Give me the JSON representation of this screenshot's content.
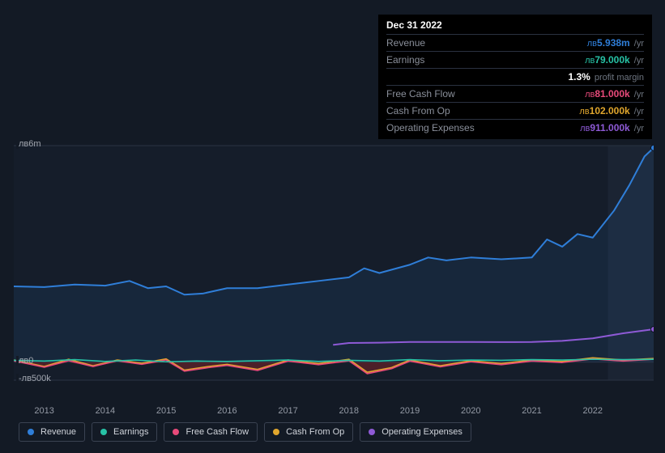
{
  "tooltip": {
    "title": "Dec 31 2022",
    "rows": [
      {
        "label": "Revenue",
        "currency": "лв",
        "value": "5.938m",
        "unit": "/yr",
        "color": "#2f7ed8"
      },
      {
        "label": "Earnings",
        "currency": "лв",
        "value": "79.000k",
        "unit": "/yr",
        "color": "#27c2a6"
      },
      {
        "label": "",
        "currency": "",
        "value": "1.3%",
        "unit": "profit margin",
        "color": "#ffffff"
      },
      {
        "label": "Free Cash Flow",
        "currency": "лв",
        "value": "81.000k",
        "unit": "/yr",
        "color": "#e84a7a"
      },
      {
        "label": "Cash From Op",
        "currency": "лв",
        "value": "102.000k",
        "unit": "/yr",
        "color": "#e0a62d"
      },
      {
        "label": "Operating Expenses",
        "currency": "лв",
        "value": "911.000k",
        "unit": "/yr",
        "color": "#8e5ad6"
      }
    ]
  },
  "chart": {
    "type": "line",
    "background_color": "#131a25",
    "plot_bg": "#151d2a",
    "future_bg": "#1b2433",
    "grid_color": "#2a3342",
    "y_min": -500000,
    "y_max": 6000000,
    "y_labels": [
      {
        "v": 6000000,
        "text": "лв6m"
      },
      {
        "v": 0,
        "text": "лв0"
      },
      {
        "v": -500000,
        "text": "-лв500k"
      }
    ],
    "x_years": [
      2013,
      2014,
      2015,
      2016,
      2017,
      2018,
      2019,
      2020,
      2021,
      2022
    ],
    "x_min": 2012.5,
    "x_max": 2023.0,
    "future_split": 2022.25,
    "series": [
      {
        "name": "Revenue",
        "color": "#2f7ed8",
        "width": 2,
        "points": [
          [
            2012.5,
            2100000
          ],
          [
            2013,
            2080000
          ],
          [
            2013.5,
            2150000
          ],
          [
            2014,
            2120000
          ],
          [
            2014.4,
            2250000
          ],
          [
            2014.7,
            2050000
          ],
          [
            2015,
            2100000
          ],
          [
            2015.3,
            1870000
          ],
          [
            2015.6,
            1900000
          ],
          [
            2016,
            2050000
          ],
          [
            2016.5,
            2050000
          ],
          [
            2017,
            2150000
          ],
          [
            2017.5,
            2250000
          ],
          [
            2018,
            2350000
          ],
          [
            2018.25,
            2600000
          ],
          [
            2018.5,
            2470000
          ],
          [
            2019,
            2700000
          ],
          [
            2019.3,
            2900000
          ],
          [
            2019.6,
            2820000
          ],
          [
            2020,
            2900000
          ],
          [
            2020.5,
            2850000
          ],
          [
            2021,
            2900000
          ],
          [
            2021.25,
            3400000
          ],
          [
            2021.5,
            3200000
          ],
          [
            2021.75,
            3550000
          ],
          [
            2022,
            3450000
          ],
          [
            2022.35,
            4200000
          ],
          [
            2022.6,
            4900000
          ],
          [
            2022.85,
            5700000
          ],
          [
            2023,
            5938000
          ]
        ]
      },
      {
        "name": "Operating Expenses",
        "color": "#8e5ad6",
        "width": 2,
        "points": [
          [
            2017.75,
            480000
          ],
          [
            2018,
            530000
          ],
          [
            2018.5,
            540000
          ],
          [
            2019,
            560000
          ],
          [
            2019.5,
            560000
          ],
          [
            2020,
            560000
          ],
          [
            2020.5,
            555000
          ],
          [
            2021,
            560000
          ],
          [
            2021.5,
            590000
          ],
          [
            2022,
            660000
          ],
          [
            2022.5,
            800000
          ],
          [
            2023,
            911000
          ]
        ]
      },
      {
        "name": "Cash From Op",
        "color": "#e0a62d",
        "width": 1.6,
        "points": [
          [
            2012.5,
            60000
          ],
          [
            2013,
            -120000
          ],
          [
            2013.4,
            80000
          ],
          [
            2013.8,
            -100000
          ],
          [
            2014.2,
            60000
          ],
          [
            2014.6,
            -30000
          ],
          [
            2015,
            90000
          ],
          [
            2015.3,
            -220000
          ],
          [
            2015.7,
            -120000
          ],
          [
            2016,
            -60000
          ],
          [
            2016.5,
            -200000
          ],
          [
            2017,
            60000
          ],
          [
            2017.5,
            -40000
          ],
          [
            2018,
            80000
          ],
          [
            2018.3,
            -280000
          ],
          [
            2018.7,
            -150000
          ],
          [
            2019,
            60000
          ],
          [
            2019.5,
            -100000
          ],
          [
            2020,
            40000
          ],
          [
            2020.5,
            -40000
          ],
          [
            2021,
            60000
          ],
          [
            2021.5,
            20000
          ],
          [
            2022,
            120000
          ],
          [
            2022.5,
            60000
          ],
          [
            2023,
            102000
          ]
        ]
      },
      {
        "name": "Free Cash Flow",
        "color": "#e84a7a",
        "width": 1.6,
        "points": [
          [
            2012.5,
            40000
          ],
          [
            2013,
            -140000
          ],
          [
            2013.4,
            40000
          ],
          [
            2013.8,
            -120000
          ],
          [
            2014.2,
            40000
          ],
          [
            2014.6,
            -60000
          ],
          [
            2015,
            60000
          ],
          [
            2015.3,
            -250000
          ],
          [
            2015.7,
            -150000
          ],
          [
            2016,
            -90000
          ],
          [
            2016.5,
            -230000
          ],
          [
            2017,
            30000
          ],
          [
            2017.5,
            -70000
          ],
          [
            2018,
            40000
          ],
          [
            2018.3,
            -320000
          ],
          [
            2018.7,
            -180000
          ],
          [
            2019,
            30000
          ],
          [
            2019.5,
            -130000
          ],
          [
            2020,
            10000
          ],
          [
            2020.5,
            -70000
          ],
          [
            2021,
            30000
          ],
          [
            2021.5,
            -10000
          ],
          [
            2022,
            90000
          ],
          [
            2022.5,
            30000
          ],
          [
            2023,
            81000
          ]
        ]
      },
      {
        "name": "Earnings",
        "color": "#27c2a6",
        "width": 1.6,
        "points": [
          [
            2012.5,
            50000
          ],
          [
            2013,
            30000
          ],
          [
            2013.5,
            70000
          ],
          [
            2014,
            20000
          ],
          [
            2014.5,
            60000
          ],
          [
            2015,
            10000
          ],
          [
            2015.5,
            30000
          ],
          [
            2016,
            20000
          ],
          [
            2016.5,
            40000
          ],
          [
            2017,
            60000
          ],
          [
            2017.5,
            20000
          ],
          [
            2018,
            50000
          ],
          [
            2018.5,
            30000
          ],
          [
            2019,
            70000
          ],
          [
            2019.5,
            40000
          ],
          [
            2020,
            60000
          ],
          [
            2020.5,
            50000
          ],
          [
            2021,
            70000
          ],
          [
            2021.5,
            60000
          ],
          [
            2022,
            80000
          ],
          [
            2022.5,
            70000
          ],
          [
            2023,
            79000
          ]
        ]
      }
    ]
  },
  "legend": [
    {
      "label": "Revenue",
      "color": "#2f7ed8"
    },
    {
      "label": "Earnings",
      "color": "#27c2a6"
    },
    {
      "label": "Free Cash Flow",
      "color": "#e84a7a"
    },
    {
      "label": "Cash From Op",
      "color": "#e0a62d"
    },
    {
      "label": "Operating Expenses",
      "color": "#8e5ad6"
    }
  ]
}
